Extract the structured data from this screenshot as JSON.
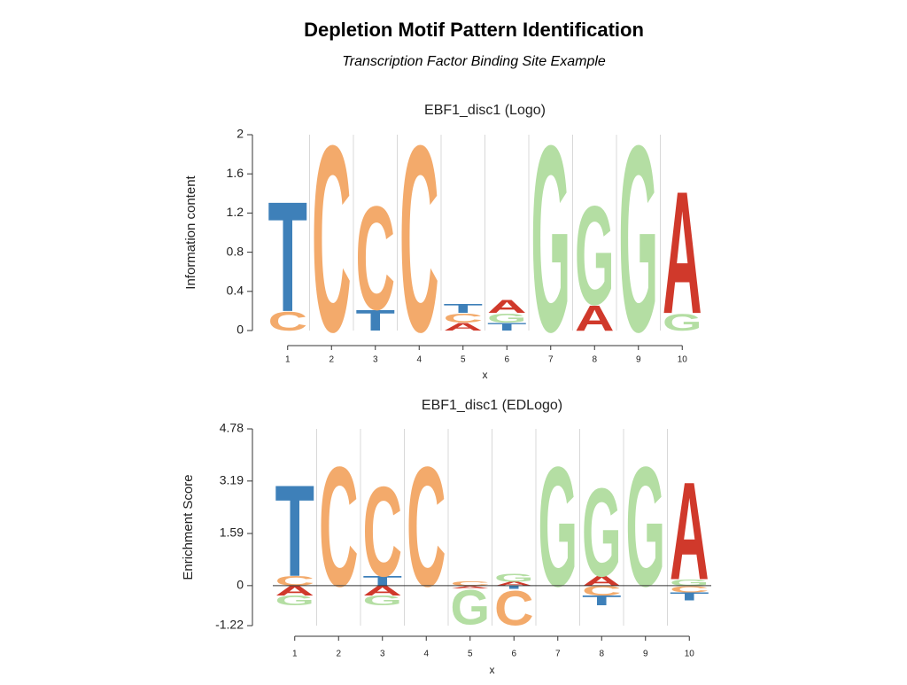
{
  "title": "Depletion Motif Pattern Identification",
  "subtitle": "Transcription Factor Binding Site Example",
  "chart_data": [
    {
      "type": "logo",
      "title": "EBF1_disc1 (Logo)",
      "xlabel": "x",
      "ylabel": "Information content",
      "categories": [
        "1",
        "2",
        "3",
        "4",
        "5",
        "6",
        "7",
        "8",
        "9",
        "10"
      ],
      "ylim": [
        0,
        2
      ],
      "yticks": [
        0,
        0.4,
        0.8,
        1.2,
        1.6,
        2
      ],
      "series": [
        {
          "name": "A",
          "color": "#d0392b",
          "values": [
            null,
            null,
            null,
            null,
            0.08,
            0.14,
            null,
            0.27,
            null,
            1.3
          ]
        },
        {
          "name": "C",
          "color": "#f3aa6b",
          "values": [
            0.2,
            1.98,
            1.1,
            1.98,
            0.1,
            null,
            null,
            null,
            null,
            null
          ]
        },
        {
          "name": "G",
          "color": "#b4dea3",
          "values": [
            null,
            null,
            null,
            null,
            null,
            0.1,
            1.98,
            1.05,
            1.98,
            0.18
          ]
        },
        {
          "name": "T",
          "color": "#3e80b9",
          "values": [
            1.17,
            null,
            0.22,
            null,
            0.1,
            0.08,
            null,
            null,
            null,
            null
          ]
        }
      ]
    },
    {
      "type": "logo",
      "title": "EBF1_disc1 (EDLogo)",
      "xlabel": "x",
      "ylabel": "Enrichment Score",
      "categories": [
        "1",
        "2",
        "3",
        "4",
        "5",
        "6",
        "7",
        "8",
        "9",
        "10"
      ],
      "ylim": [
        -1.22,
        4.78
      ],
      "yticks": [
        -1.22,
        0,
        1.59,
        3.19,
        4.78
      ],
      "series": [
        {
          "name": "A",
          "color": "#d0392b",
          "values": [
            -0.3,
            null,
            -0.3,
            null,
            -0.08,
            0.12,
            null,
            0.3,
            null,
            3.1
          ]
        },
        {
          "name": "C",
          "color": "#f3aa6b",
          "values": [
            0.3,
            3.8,
            2.85,
            3.8,
            0.15,
            -1.1,
            null,
            -0.3,
            null,
            -0.2
          ]
        },
        {
          "name": "G",
          "color": "#b4dea3",
          "values": [
            -0.3,
            null,
            -0.3,
            null,
            -1.1,
            0.25,
            3.8,
            2.8,
            3.8,
            0.2
          ]
        },
        {
          "name": "T",
          "color": "#3e80b9",
          "values": [
            2.9,
            null,
            0.3,
            null,
            null,
            -0.1,
            null,
            -0.3,
            null,
            -0.25
          ]
        }
      ]
    }
  ]
}
